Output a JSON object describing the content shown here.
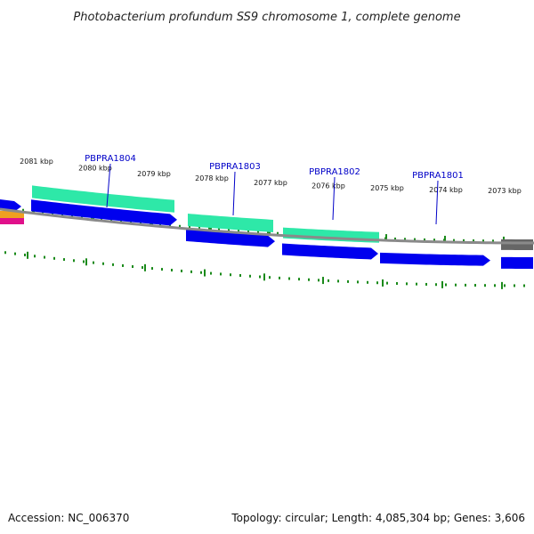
{
  "title": "Photobacterium profundum SS9 chromosome 1, complete genome",
  "footer": {
    "accession": "Accession: NC_006370",
    "topology": "Topology: circular; Length: 4,085,304 bp; Genes: 3,606"
  },
  "colors": {
    "forward_cds": "#0000ee",
    "rna_feature": "#2ee8a8",
    "tick": "#1a8a1a",
    "backbone": "#8a8a8a",
    "gene_label": "#0000c8",
    "other_feature": "#666666",
    "edge_orange": "#f0a020",
    "edge_magenta": "#e0108a"
  },
  "ticks": [
    "2081 kbp",
    "2080 kbp",
    "2079 kbp",
    "2078 kbp",
    "2077 kbp",
    "2076 kbp",
    "2075 kbp",
    "2074 kbp",
    "2073 kbp"
  ],
  "genes": [
    {
      "id": "PBPRA1804"
    },
    {
      "id": "PBPRA1803"
    },
    {
      "id": "PBPRA1802"
    },
    {
      "id": "PBPRA1801"
    }
  ]
}
